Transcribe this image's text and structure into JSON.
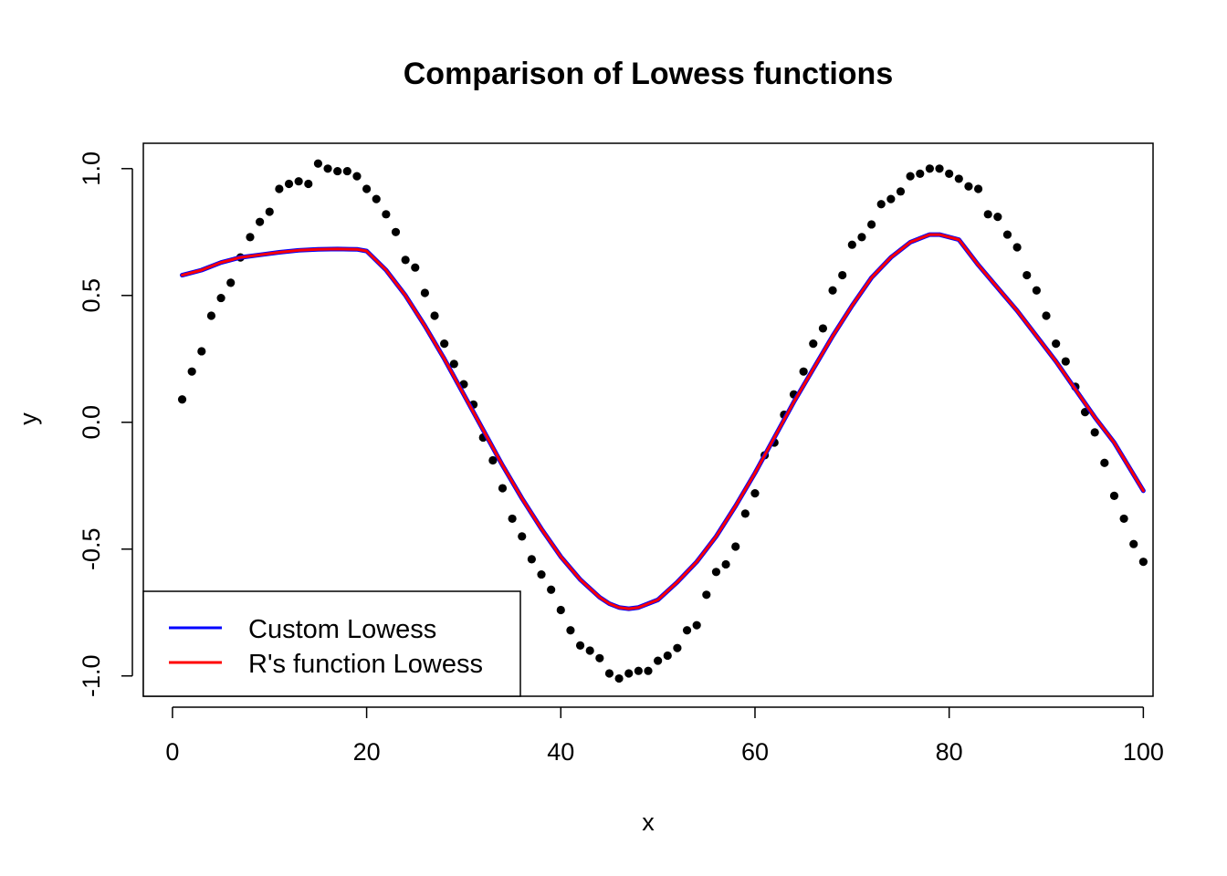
{
  "chart_data": {
    "type": "scatter",
    "title": "Comparison of Lowess functions",
    "xlabel": "x",
    "ylabel": "y",
    "xlim": [
      -3,
      101
    ],
    "ylim": [
      -1.08,
      1.1
    ],
    "x_ticks": [
      0,
      20,
      40,
      60,
      80,
      100
    ],
    "x_tick_labels": [
      "0",
      "20",
      "40",
      "60",
      "80",
      "100"
    ],
    "y_ticks": [
      -1.0,
      -0.5,
      0.0,
      0.5,
      1.0
    ],
    "y_tick_labels": [
      "-1.0",
      "-0.5",
      "0.0",
      "0.5",
      "1.0"
    ],
    "grid": false,
    "legend_position": "bottom-left",
    "points": {
      "color": "#000000",
      "x": [
        1,
        2,
        3,
        4,
        5,
        6,
        7,
        8,
        9,
        10,
        11,
        12,
        13,
        14,
        15,
        16,
        17,
        18,
        19,
        20,
        21,
        22,
        23,
        24,
        25,
        26,
        27,
        28,
        29,
        30,
        31,
        32,
        33,
        34,
        35,
        36,
        37,
        38,
        39,
        40,
        41,
        42,
        43,
        44,
        45,
        46,
        47,
        48,
        49,
        50,
        51,
        52,
        53,
        54,
        55,
        56,
        57,
        58,
        59,
        60,
        61,
        62,
        63,
        64,
        65,
        66,
        67,
        68,
        69,
        70,
        71,
        72,
        73,
        74,
        75,
        76,
        77,
        78,
        79,
        80,
        81,
        82,
        83,
        84,
        85,
        86,
        87,
        88,
        89,
        90,
        91,
        92,
        93,
        94,
        95,
        96,
        97,
        98,
        99,
        100
      ],
      "y": [
        0.09,
        0.2,
        0.28,
        0.42,
        0.49,
        0.55,
        0.65,
        0.73,
        0.79,
        0.83,
        0.92,
        0.94,
        0.95,
        0.94,
        1.02,
        1.0,
        0.99,
        0.99,
        0.97,
        0.92,
        0.88,
        0.82,
        0.75,
        0.64,
        0.61,
        0.51,
        0.42,
        0.31,
        0.23,
        0.15,
        0.07,
        -0.06,
        -0.15,
        -0.26,
        -0.38,
        -0.45,
        -0.54,
        -0.6,
        -0.66,
        -0.74,
        -0.82,
        -0.88,
        -0.9,
        -0.93,
        -0.99,
        -1.01,
        -0.99,
        -0.98,
        -0.98,
        -0.94,
        -0.92,
        -0.89,
        -0.82,
        -0.8,
        -0.68,
        -0.59,
        -0.56,
        -0.49,
        -0.36,
        -0.28,
        -0.13,
        -0.08,
        0.03,
        0.11,
        0.2,
        0.31,
        0.37,
        0.52,
        0.58,
        0.7,
        0.73,
        0.78,
        0.86,
        0.88,
        0.91,
        0.97,
        0.98,
        1.0,
        1.0,
        0.98,
        0.96,
        0.93,
        0.92,
        0.82,
        0.81,
        0.74,
        0.69,
        0.58,
        0.52,
        0.42,
        0.31,
        0.24,
        0.14,
        0.04,
        -0.04,
        -0.16,
        -0.29,
        -0.38,
        -0.48,
        -0.55
      ]
    },
    "series": [
      {
        "name": "Custom Lowess",
        "color": "#0000ff",
        "x": [
          1,
          3,
          5,
          7,
          9,
          11,
          13,
          15,
          17,
          19,
          20,
          22,
          24,
          26,
          28,
          30,
          32,
          34,
          36,
          38,
          40,
          42,
          44,
          45,
          46,
          47,
          48,
          50,
          52,
          54,
          56,
          58,
          60,
          62,
          64,
          66,
          68,
          70,
          72,
          74,
          76,
          78,
          79,
          81,
          83,
          85,
          87,
          89,
          91,
          93,
          95,
          97,
          100
        ],
        "y": [
          0.58,
          0.6,
          0.63,
          0.65,
          0.66,
          0.67,
          0.678,
          0.682,
          0.683,
          0.682,
          0.675,
          0.6,
          0.5,
          0.38,
          0.25,
          0.11,
          -0.03,
          -0.17,
          -0.3,
          -0.42,
          -0.53,
          -0.62,
          -0.69,
          -0.715,
          -0.73,
          -0.735,
          -0.73,
          -0.7,
          -0.63,
          -0.55,
          -0.45,
          -0.33,
          -0.2,
          -0.06,
          0.08,
          0.21,
          0.34,
          0.46,
          0.57,
          0.65,
          0.71,
          0.74,
          0.74,
          0.72,
          0.62,
          0.53,
          0.44,
          0.34,
          0.24,
          0.13,
          0.02,
          -0.08,
          -0.27
        ]
      },
      {
        "name": "R's function Lowess",
        "color": "#ff0000",
        "x": [
          1,
          3,
          5,
          7,
          9,
          11,
          13,
          15,
          17,
          19,
          20,
          22,
          24,
          26,
          28,
          30,
          32,
          34,
          36,
          38,
          40,
          42,
          44,
          45,
          46,
          47,
          48,
          50,
          52,
          54,
          56,
          58,
          60,
          62,
          64,
          66,
          68,
          70,
          72,
          74,
          76,
          78,
          79,
          81,
          83,
          85,
          87,
          89,
          91,
          93,
          95,
          97,
          100
        ],
        "y": [
          0.58,
          0.6,
          0.63,
          0.65,
          0.66,
          0.67,
          0.678,
          0.682,
          0.683,
          0.682,
          0.675,
          0.6,
          0.5,
          0.38,
          0.25,
          0.11,
          -0.03,
          -0.17,
          -0.3,
          -0.42,
          -0.53,
          -0.62,
          -0.69,
          -0.715,
          -0.73,
          -0.735,
          -0.73,
          -0.7,
          -0.63,
          -0.55,
          -0.45,
          -0.33,
          -0.2,
          -0.06,
          0.08,
          0.21,
          0.34,
          0.46,
          0.57,
          0.65,
          0.71,
          0.74,
          0.74,
          0.72,
          0.62,
          0.53,
          0.44,
          0.34,
          0.24,
          0.13,
          0.02,
          -0.08,
          -0.27
        ]
      }
    ]
  }
}
